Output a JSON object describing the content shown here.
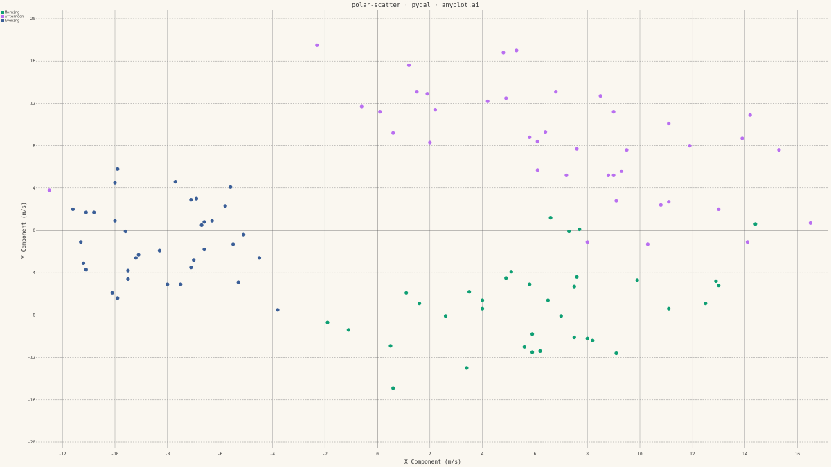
{
  "chart_data": {
    "type": "scatter",
    "title": "polar-scatter · pygal · anyplot.ai",
    "xlabel": "X Component (m/s)",
    "ylabel": "Y Component (m/s)",
    "xlim": [
      -13.5,
      17.1
    ],
    "ylim": [
      -20.5,
      20.5
    ],
    "xticks": [
      -12,
      -10,
      -8,
      -6,
      -4,
      -2,
      0,
      2,
      4,
      6,
      8,
      10,
      12,
      14,
      16
    ],
    "yticks": [
      -20,
      -16,
      -12,
      -8,
      -4,
      0,
      4,
      8,
      12,
      16,
      20
    ],
    "grid": true,
    "legend_position": "top-left",
    "series": [
      {
        "name": "Morning",
        "color": "#0E9F73",
        "points": [
          [
            6.6,
            1.2
          ],
          [
            7.3,
            -0.1
          ],
          [
            7.7,
            0.1
          ],
          [
            14.4,
            0.6
          ],
          [
            -1.9,
            -8.7
          ],
          [
            -1.1,
            -9.4
          ],
          [
            1.1,
            -5.9
          ],
          [
            1.6,
            -6.9
          ],
          [
            0.5,
            -10.9
          ],
          [
            0.6,
            -14.9
          ],
          [
            2.6,
            -8.1
          ],
          [
            3.5,
            -5.8
          ],
          [
            3.4,
            -13.0
          ],
          [
            4.0,
            -6.6
          ],
          [
            4.0,
            -7.4
          ],
          [
            4.9,
            -4.5
          ],
          [
            5.1,
            -3.9
          ],
          [
            5.8,
            -5.1
          ],
          [
            5.6,
            -11.0
          ],
          [
            5.9,
            -9.8
          ],
          [
            5.9,
            -11.5
          ],
          [
            6.2,
            -11.4
          ],
          [
            6.5,
            -6.6
          ],
          [
            7.0,
            -8.1
          ],
          [
            7.5,
            -10.1
          ],
          [
            7.5,
            -5.3
          ],
          [
            7.6,
            -4.4
          ],
          [
            8.0,
            -10.2
          ],
          [
            8.2,
            -10.4
          ],
          [
            9.1,
            -11.6
          ],
          [
            9.9,
            -4.7
          ],
          [
            11.1,
            -7.4
          ],
          [
            12.5,
            -6.9
          ],
          [
            12.9,
            -4.8
          ],
          [
            13.0,
            -5.2
          ]
        ]
      },
      {
        "name": "Afternoon",
        "color": "#B96FF0",
        "points": [
          [
            -12.5,
            3.8
          ],
          [
            -2.3,
            17.5
          ],
          [
            -0.6,
            11.7
          ],
          [
            0.1,
            11.2
          ],
          [
            0.6,
            9.2
          ],
          [
            1.2,
            15.6
          ],
          [
            1.5,
            13.1
          ],
          [
            1.9,
            12.9
          ],
          [
            2.0,
            8.3
          ],
          [
            2.2,
            11.4
          ],
          [
            4.2,
            12.2
          ],
          [
            4.8,
            16.8
          ],
          [
            4.9,
            12.5
          ],
          [
            5.3,
            17.0
          ],
          [
            5.8,
            8.8
          ],
          [
            6.1,
            8.4
          ],
          [
            6.1,
            5.7
          ],
          [
            6.4,
            9.3
          ],
          [
            6.8,
            13.1
          ],
          [
            7.2,
            5.2
          ],
          [
            7.6,
            7.7
          ],
          [
            8.0,
            -1.1
          ],
          [
            8.5,
            12.7
          ],
          [
            8.8,
            5.2
          ],
          [
            9.0,
            11.2
          ],
          [
            9.0,
            5.2
          ],
          [
            9.1,
            2.8
          ],
          [
            9.3,
            5.6
          ],
          [
            9.5,
            7.6
          ],
          [
            10.3,
            -1.3
          ],
          [
            10.8,
            2.4
          ],
          [
            11.1,
            2.7
          ],
          [
            11.1,
            10.1
          ],
          [
            11.9,
            8.0
          ],
          [
            13.0,
            2.0
          ],
          [
            13.9,
            8.7
          ],
          [
            14.1,
            -1.1
          ],
          [
            14.2,
            10.9
          ],
          [
            15.3,
            7.6
          ],
          [
            16.5,
            0.7
          ]
        ]
      },
      {
        "name": "Evening",
        "color": "#3A5E97",
        "points": [
          [
            -11.6,
            2.0
          ],
          [
            -11.1,
            1.7
          ],
          [
            -10.8,
            1.7
          ],
          [
            -11.3,
            -1.1
          ],
          [
            -11.2,
            -3.1
          ],
          [
            -11.1,
            -3.7
          ],
          [
            -10.1,
            -5.9
          ],
          [
            -9.9,
            -6.4
          ],
          [
            -10.0,
            0.9
          ],
          [
            -10.0,
            4.5
          ],
          [
            -9.9,
            5.8
          ],
          [
            -9.6,
            -0.1
          ],
          [
            -9.5,
            -3.8
          ],
          [
            -9.5,
            -4.6
          ],
          [
            -9.2,
            -2.6
          ],
          [
            -9.1,
            -2.3
          ],
          [
            -8.3,
            -1.9
          ],
          [
            -8.0,
            -5.1
          ],
          [
            -7.7,
            4.6
          ],
          [
            -7.5,
            -5.1
          ],
          [
            -7.1,
            2.9
          ],
          [
            -7.1,
            -3.5
          ],
          [
            -7.0,
            -2.8
          ],
          [
            -6.9,
            3.0
          ],
          [
            -6.7,
            0.5
          ],
          [
            -6.6,
            0.8
          ],
          [
            -6.6,
            -1.8
          ],
          [
            -6.3,
            0.9
          ],
          [
            -5.8,
            2.3
          ],
          [
            -5.6,
            4.1
          ],
          [
            -5.5,
            -1.3
          ],
          [
            -5.3,
            -4.9
          ],
          [
            -5.1,
            -0.4
          ],
          [
            -4.5,
            -2.6
          ],
          [
            -3.8,
            -7.5
          ]
        ]
      }
    ]
  }
}
